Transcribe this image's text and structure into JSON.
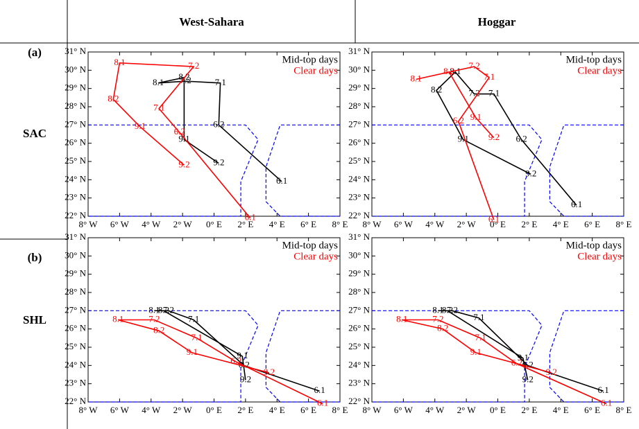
{
  "table": {
    "columns": [
      "West-Sahara",
      "Hoggar"
    ],
    "rows": [
      {
        "tag": "(a)",
        "label": "SAC"
      },
      {
        "tag": "(b)",
        "label": "SHL"
      }
    ]
  },
  "chart_data": [
    {
      "type": "line",
      "xlim": [
        -8,
        8
      ],
      "ylim": [
        22,
        31
      ],
      "xticks": [
        {
          "value": -8,
          "label": "8° W"
        },
        {
          "value": -6,
          "label": "6° W"
        },
        {
          "value": -4,
          "label": "4° W"
        },
        {
          "value": -2,
          "label": "2° W"
        },
        {
          "value": 0,
          "label": "0° E"
        },
        {
          "value": 2,
          "label": "2° E"
        },
        {
          "value": 4,
          "label": "4° E"
        },
        {
          "value": 6,
          "label": "6° E"
        },
        {
          "value": 8,
          "label": "8° E"
        }
      ],
      "yticks": [
        {
          "value": 22,
          "label": "22° N"
        },
        {
          "value": 23,
          "label": "23° N"
        },
        {
          "value": 24,
          "label": "24° N"
        },
        {
          "value": 25,
          "label": "25° N"
        },
        {
          "value": 26,
          "label": "26° N"
        },
        {
          "value": 27,
          "label": "27° N"
        },
        {
          "value": 28,
          "label": "28° N"
        },
        {
          "value": 29,
          "label": "29° N"
        },
        {
          "value": 30,
          "label": "30° N"
        },
        {
          "value": 31,
          "label": "31° N"
        }
      ],
      "series": [
        {
          "name": "Mid-top days",
          "color": "#000000",
          "x": [
            4.3,
            0.3,
            0.4,
            -1.8,
            -3.55,
            -1.9,
            -1.9,
            0.3
          ],
          "values": [
            23.9,
            27.0,
            29.3,
            29.4,
            29.3,
            29.6,
            26.2,
            24.9
          ],
          "labels": [
            "6.1",
            "6.2",
            "7.1",
            "7.2",
            "8.1",
            "8.2",
            "9.1",
            "9.2"
          ]
        },
        {
          "name": "Clear days",
          "color": "#ff0000",
          "x": [
            2.3,
            -2.2,
            -3.5,
            -1.3,
            -6.0,
            -6.4,
            -4.7,
            -1.9
          ],
          "values": [
            21.9,
            26.6,
            27.9,
            30.2,
            30.4,
            28.4,
            26.9,
            24.8
          ],
          "labels": [
            "6.1",
            "6.2",
            "7.1",
            "7.2",
            "8.1",
            "8.2",
            "9.1",
            "9.2"
          ]
        }
      ],
      "outline": {
        "color": "#0000ff",
        "parts": [
          {
            "x": [
              -8,
              2.0,
              2.8,
              1.7,
              1.7,
              -8
            ],
            "y": [
              27,
              27,
              26.2,
              23.9,
              22,
              22
            ]
          },
          {
            "x": [
              8,
              4.2,
              3.3,
              3.3,
              4.2,
              8
            ],
            "y": [
              27,
              27,
              24.7,
              22.8,
              22,
              22
            ]
          }
        ]
      }
    },
    {
      "type": "line",
      "xlim": [
        -8,
        8
      ],
      "ylim": [
        22,
        31
      ],
      "xticks": [
        {
          "value": -8,
          "label": "8° W"
        },
        {
          "value": -6,
          "label": "6° W"
        },
        {
          "value": -4,
          "label": "4° W"
        },
        {
          "value": -2,
          "label": "2° W"
        },
        {
          "value": 0,
          "label": "0° E"
        },
        {
          "value": 2,
          "label": "2° E"
        },
        {
          "value": 4,
          "label": "4° E"
        },
        {
          "value": 6,
          "label": "6° E"
        },
        {
          "value": 8,
          "label": "8° E"
        }
      ],
      "yticks": [
        {
          "value": 22,
          "label": "22° N"
        },
        {
          "value": 23,
          "label": "23° N"
        },
        {
          "value": 24,
          "label": "24° N"
        },
        {
          "value": 25,
          "label": "25° N"
        },
        {
          "value": 26,
          "label": "26° N"
        },
        {
          "value": 27,
          "label": "27° N"
        },
        {
          "value": 28,
          "label": "28° N"
        },
        {
          "value": 29,
          "label": "29° N"
        },
        {
          "value": 30,
          "label": "30° N"
        },
        {
          "value": 31,
          "label": "31° N"
        }
      ],
      "series": [
        {
          "name": "Mid-top days",
          "color": "#000000",
          "x": [
            5.0,
            1.5,
            -0.25,
            -1.5,
            -2.7,
            -3.9,
            -2.2,
            2.1
          ],
          "values": [
            22.6,
            26.2,
            28.7,
            28.7,
            29.9,
            28.9,
            26.2,
            24.3
          ],
          "labels": [
            "6.1",
            "6.2",
            "7.1",
            "7.2",
            "8.1",
            "8.2",
            "9.1",
            "9.2"
          ]
        },
        {
          "name": "Clear days",
          "color": "#ff0000",
          "x": [
            -0.25,
            -2.5,
            -0.55,
            -1.5,
            -5.2,
            -3.1,
            -1.4,
            -0.25
          ],
          "values": [
            21.8,
            27.2,
            29.6,
            30.2,
            29.5,
            29.9,
            27.4,
            26.3
          ],
          "labels": [
            "6.1",
            "6.2",
            "7.1",
            "7.2",
            "8.1",
            "8.2",
            "9.1",
            "9.2"
          ]
        }
      ],
      "outline": {
        "color": "#0000ff",
        "parts": [
          {
            "x": [
              -8,
              2.0,
              2.8,
              1.7,
              1.7,
              -8
            ],
            "y": [
              27,
              27,
              26.2,
              23.9,
              22,
              22
            ]
          },
          {
            "x": [
              8,
              4.2,
              3.3,
              3.3,
              4.2,
              8
            ],
            "y": [
              27,
              27,
              24.7,
              22.8,
              22,
              22
            ]
          }
        ]
      }
    },
    {
      "type": "line",
      "xlim": [
        -8,
        8
      ],
      "ylim": [
        22,
        31
      ],
      "xticks": [
        {
          "value": -8,
          "label": "8° W"
        },
        {
          "value": -6,
          "label": "6° W"
        },
        {
          "value": -4,
          "label": "4° W"
        },
        {
          "value": -2,
          "label": "2° W"
        },
        {
          "value": 0,
          "label": "0° E"
        },
        {
          "value": 2,
          "label": "2° E"
        },
        {
          "value": 4,
          "label": "4° E"
        },
        {
          "value": 6,
          "label": "6° E"
        },
        {
          "value": 8,
          "label": "8° E"
        }
      ],
      "yticks": [
        {
          "value": 22,
          "label": "22° N"
        },
        {
          "value": 23,
          "label": "23° N"
        },
        {
          "value": 24,
          "label": "24° N"
        },
        {
          "value": 25,
          "label": "25° N"
        },
        {
          "value": 26,
          "label": "26° N"
        },
        {
          "value": 27,
          "label": "27° N"
        },
        {
          "value": 28,
          "label": "28° N"
        },
        {
          "value": 29,
          "label": "29° N"
        },
        {
          "value": 30,
          "label": "30° N"
        },
        {
          "value": 31,
          "label": "31° N"
        }
      ],
      "series": [
        {
          "name": "Mid-top days",
          "color": "#000000",
          "x": [
            6.7,
            1.9,
            -1.3,
            -2.9,
            -3.8,
            -3.2,
            1.8,
            2.0
          ],
          "values": [
            22.6,
            24.0,
            26.5,
            27.0,
            27.0,
            27.0,
            24.5,
            23.2
          ],
          "labels": [
            "6.1",
            "6.2",
            "7.1",
            "7.2",
            "8.1",
            "8.2",
            "9.1",
            "9.2"
          ]
        },
        {
          "name": "Clear days",
          "color": "#ff0000",
          "x": [
            6.9,
            1.4,
            -1.1,
            -3.8,
            -6.1,
            -3.5,
            -1.4,
            3.5
          ],
          "values": [
            21.9,
            24.2,
            25.5,
            26.5,
            26.5,
            25.9,
            24.7,
            23.6
          ],
          "labels": [
            "6.1",
            "6.2",
            "7.1",
            "7.2",
            "8.1",
            "8.2",
            "9.1",
            "9.2"
          ]
        }
      ],
      "outline": {
        "color": "#0000ff",
        "parts": [
          {
            "x": [
              -8,
              2.0,
              2.8,
              1.7,
              1.7,
              -8
            ],
            "y": [
              27,
              27,
              26.2,
              23.9,
              22,
              22
            ]
          },
          {
            "x": [
              8,
              4.2,
              3.3,
              3.3,
              4.2,
              8
            ],
            "y": [
              27,
              27,
              24.7,
              22.8,
              22,
              22
            ]
          }
        ]
      }
    },
    {
      "type": "line",
      "xlim": [
        -8,
        8
      ],
      "ylim": [
        22,
        31
      ],
      "xticks": [
        {
          "value": -8,
          "label": "8° W"
        },
        {
          "value": -6,
          "label": "6° W"
        },
        {
          "value": -4,
          "label": "4° W"
        },
        {
          "value": -2,
          "label": "2° W"
        },
        {
          "value": 0,
          "label": "0° E"
        },
        {
          "value": 2,
          "label": "2° E"
        },
        {
          "value": 4,
          "label": "4° E"
        },
        {
          "value": 6,
          "label": "6° E"
        },
        {
          "value": 8,
          "label": "8° E"
        }
      ],
      "yticks": [
        {
          "value": 22,
          "label": "22° N"
        },
        {
          "value": 23,
          "label": "23° N"
        },
        {
          "value": 24,
          "label": "24° N"
        },
        {
          "value": 25,
          "label": "25° N"
        },
        {
          "value": 26,
          "label": "26° N"
        },
        {
          "value": 27,
          "label": "27° N"
        },
        {
          "value": 28,
          "label": "28° N"
        },
        {
          "value": 29,
          "label": "29° N"
        },
        {
          "value": 30,
          "label": "30° N"
        },
        {
          "value": 31,
          "label": "31° N"
        }
      ],
      "series": [
        {
          "name": "Mid-top days",
          "color": "#000000",
          "x": [
            6.7,
            1.9,
            -1.2,
            -2.9,
            -3.8,
            -3.2,
            1.6,
            1.9
          ],
          "values": [
            22.6,
            24.0,
            26.6,
            27.0,
            27.0,
            27.0,
            24.4,
            23.2
          ],
          "labels": [
            "6.1",
            "6.2",
            "7.1",
            "7.2",
            "8.1",
            "8.2",
            "9.1",
            "9.2"
          ]
        },
        {
          "name": "Clear days",
          "color": "#ff0000",
          "x": [
            6.9,
            1.2,
            -1.1,
            -3.8,
            -6.1,
            -3.5,
            -1.4,
            3.4
          ],
          "values": [
            21.9,
            24.1,
            25.5,
            26.5,
            26.5,
            26.0,
            24.7,
            23.6
          ],
          "labels": [
            "6.1",
            "6.2",
            "7.1",
            "7.2",
            "8.1",
            "8.2",
            "9.1",
            "9.2"
          ]
        }
      ],
      "outline": {
        "color": "#0000ff",
        "parts": [
          {
            "x": [
              -8,
              2.0,
              2.8,
              1.7,
              1.7,
              -8
            ],
            "y": [
              27,
              27,
              26.2,
              23.9,
              22,
              22
            ]
          },
          {
            "x": [
              8,
              4.2,
              3.3,
              3.3,
              4.2,
              8
            ],
            "y": [
              27,
              27,
              24.7,
              22.8,
              22,
              22
            ]
          }
        ]
      }
    }
  ]
}
